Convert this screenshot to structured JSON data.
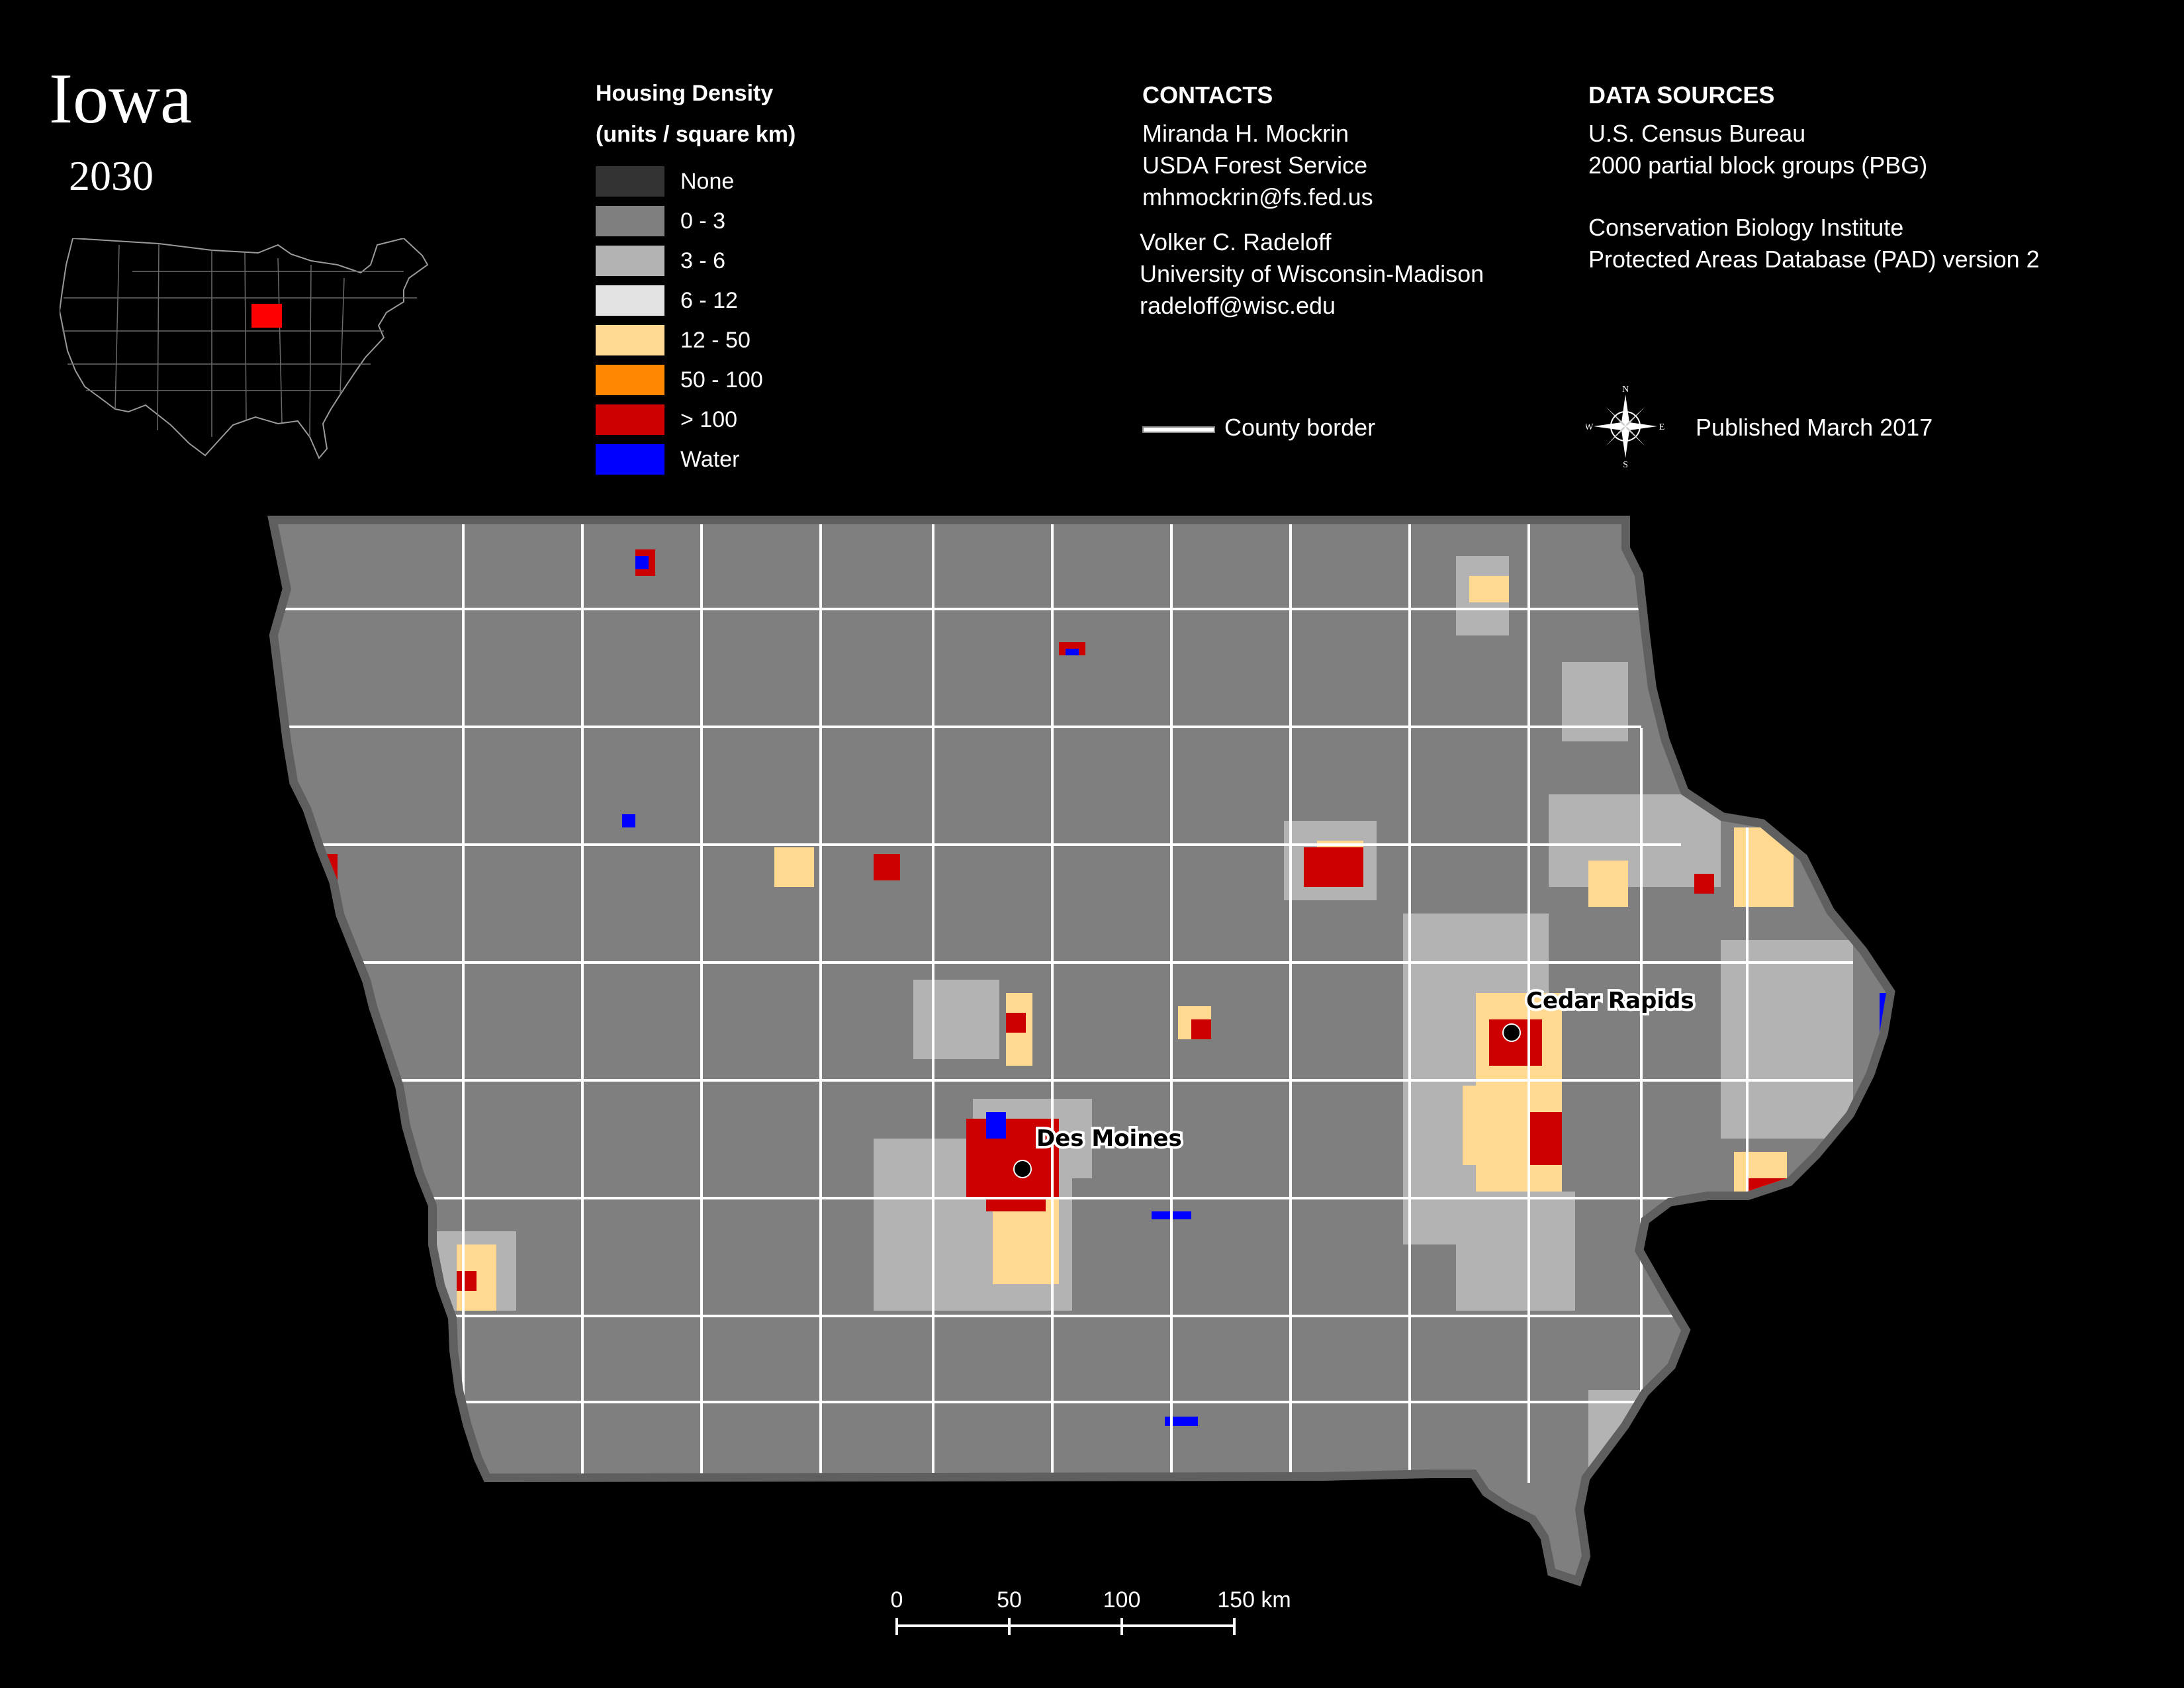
{
  "header": {
    "title": "Iowa",
    "year": "2030"
  },
  "legend": {
    "title_line1": "Housing Density",
    "title_line2": "(units / square km)",
    "items": [
      {
        "label": "None",
        "color": "#333333"
      },
      {
        "label": "0 - 3",
        "color": "#7f7f7f"
      },
      {
        "label": "3 - 6",
        "color": "#b3b3b3"
      },
      {
        "label": "6 - 12",
        "color": "#e3e3e3"
      },
      {
        "label": "12 - 50",
        "color": "#ffd98f"
      },
      {
        "label": "50 - 100",
        "color": "#ff8800"
      },
      {
        "label": "> 100",
        "color": "#cc0000"
      },
      {
        "label": "Water",
        "color": "#0000ff"
      }
    ]
  },
  "contacts": {
    "heading": "CONTACTS",
    "person1": [
      "Miranda H. Mockrin",
      "USDA Forest Service",
      "mhmockrin@fs.fed.us"
    ],
    "person2": [
      "Volker C. Radeloff",
      "University of Wisconsin-Madison",
      "radeloff@wisc.edu"
    ],
    "county_border_label": "County border"
  },
  "data_sources": {
    "heading": "DATA SOURCES",
    "source1": [
      "U.S. Census Bureau",
      "2000 partial block groups (PBG)"
    ],
    "source2": [
      "Conservation Biology Institute",
      "Protected Areas Database (PAD) version 2"
    ],
    "published": "Published March 2017"
  },
  "compass": {
    "n": "N",
    "s": "S",
    "e": "E",
    "w": "W"
  },
  "cities": [
    {
      "name": "Des Moines"
    },
    {
      "name": "Cedar Rapids"
    }
  ],
  "scale_bar": {
    "ticks": [
      "0",
      "50",
      "100",
      "150 km"
    ]
  },
  "colors": {
    "background": "#000000",
    "state_fill": "#7f7f7f",
    "state_outline": "#5f5f5f",
    "county_border": "#ffffff",
    "highlight_state": "#ff0000"
  }
}
